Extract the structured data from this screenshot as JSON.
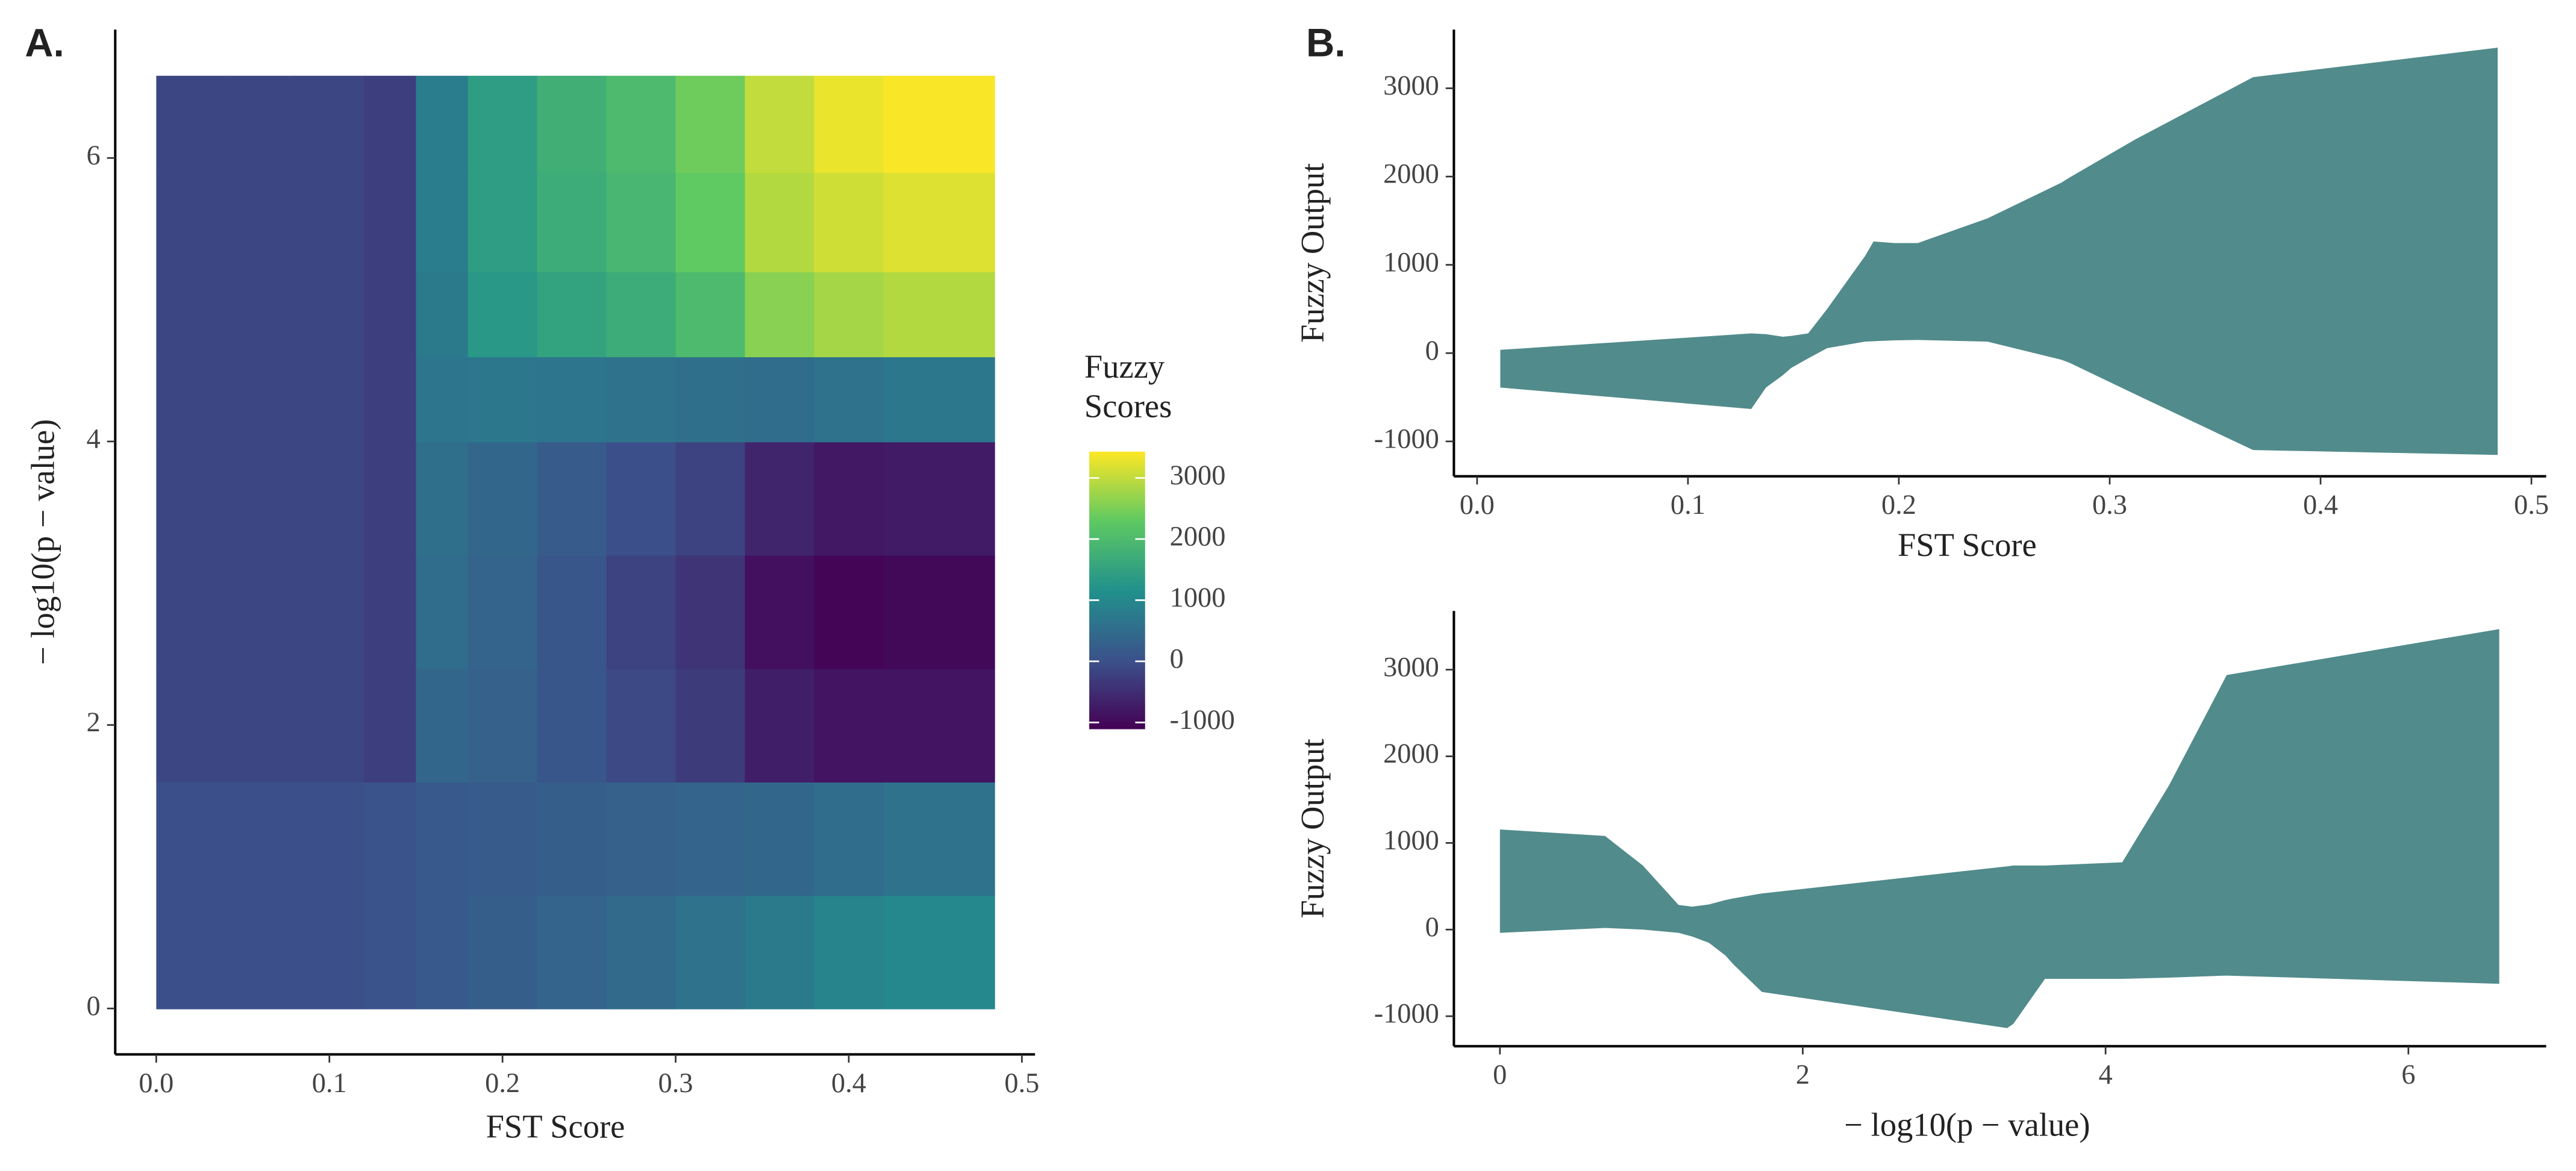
{
  "chart_data": [
    {
      "type": "heatmap",
      "panel_label": "A.",
      "xlabel": "FST Score",
      "ylabel": "− log10(p − value)",
      "xbins": [
        0,
        0.04,
        0.08,
        0.12,
        0.15,
        0.18,
        0.22,
        0.26,
        0.3,
        0.34,
        0.38,
        0.42,
        0.484
      ],
      "ybins": [
        0,
        0.8,
        1.6,
        2.4,
        3.2,
        4.0,
        4.6,
        5.2,
        5.9,
        6.58
      ],
      "values": [
        [
          0,
          0,
          0,
          50,
          150,
          250,
          350,
          450,
          600,
          750,
          900,
          1000
        ],
        [
          0,
          0,
          0,
          50,
          150,
          200,
          250,
          300,
          350,
          400,
          500,
          600
        ],
        [
          -150,
          -150,
          -150,
          -250,
          400,
          300,
          100,
          -100,
          -300,
          -700,
          -850,
          -850
        ],
        [
          -150,
          -150,
          -150,
          -250,
          500,
          350,
          100,
          -200,
          -400,
          -900,
          -1050,
          -1000
        ],
        [
          -150,
          -150,
          -150,
          -250,
          550,
          400,
          200,
          0,
          -200,
          -600,
          -800,
          -750
        ],
        [
          -150,
          -150,
          -150,
          -250,
          650,
          700,
          650,
          600,
          550,
          500,
          600,
          700
        ],
        [
          -150,
          -150,
          -150,
          -250,
          750,
          1300,
          1500,
          1700,
          2000,
          2600,
          2800,
          2900
        ],
        [
          -150,
          -150,
          -150,
          -250,
          800,
          1400,
          1700,
          1900,
          2300,
          2900,
          3100,
          3200
        ],
        [
          -150,
          -150,
          -150,
          -250,
          800,
          1400,
          1750,
          2000,
          2400,
          3000,
          3300,
          3400
        ]
      ],
      "xlim": [
        -0.0237,
        0.5076
      ],
      "xticks": [
        {
          "value": 0,
          "label": "0.0"
        },
        0.1,
        0.2,
        0.3,
        0.4,
        0.5
      ],
      "ylim": [
        -0.324,
        6.906
      ],
      "yticks": [
        0,
        2,
        4,
        6
      ],
      "legend_title": "Fuzzy Scores",
      "colormap": [
        "#440154",
        "#3b528b",
        "#21918c",
        "#5ec962",
        "#fde725"
      ],
      "clim": [
        -1110,
        3430
      ],
      "cticks": [
        -1000,
        0,
        1000,
        2000,
        3000
      ]
    },
    {
      "type": "ribbon",
      "panel_label": "B.",
      "xlabel": "FST Score",
      "ylabel": "Fuzzy Output",
      "color": "#528b8b",
      "x": [
        0.011,
        0.13,
        0.137,
        0.145,
        0.149,
        0.157,
        0.166,
        0.184,
        0.188,
        0.198,
        0.209,
        0.242,
        0.277,
        0.281,
        0.312,
        0.368,
        0.484
      ],
      "ymax": [
        37,
        223,
        215,
        186,
        195,
        223,
        500,
        1100,
        1265,
        1247,
        1247,
        1526,
        1930,
        1990,
        2419,
        3126,
        3460
      ],
      "ymin": [
        -390,
        -633,
        -390,
        -250,
        -167,
        -60,
        56,
        130,
        135,
        145,
        149,
        130,
        -74,
        -110,
        -465,
        -1098,
        -1153
      ],
      "xlim": [
        -0.011,
        0.507
      ],
      "xticks": [
        {
          "value": 0,
          "label": "0.0"
        },
        0.1,
        0.2,
        0.3,
        0.4,
        0.5
      ],
      "ylim": [
        -1395,
        3665
      ],
      "yticks": [
        -1000,
        0,
        1000,
        2000,
        3000
      ]
    },
    {
      "type": "ribbon",
      "xlabel": "− log10(p − value)",
      "ylabel": "Fuzzy Output",
      "color": "#528b8b",
      "x": [
        0,
        0.694,
        0.944,
        1.18,
        1.27,
        1.38,
        1.49,
        1.54,
        1.73,
        3.35,
        3.39,
        3.6,
        4.11,
        4.42,
        4.8,
        6.6
      ],
      "ymax": [
        1156,
        1081,
        739,
        284,
        265,
        290,
        341,
        360,
        417,
        730,
        739,
        739,
        777,
        1668,
        2938,
        3469
      ],
      "ymin": [
        -38,
        19,
        0,
        -38,
        -80,
        -152,
        -300,
        -398,
        -720,
        -1137,
        -1090,
        -569,
        -569,
        -555,
        -531,
        -626
      ],
      "xlim": [
        -0.304,
        6.91
      ],
      "xticks": [
        0,
        2,
        4,
        6
      ],
      "ylim": [
        -1346,
        3678
      ],
      "yticks": [
        -1000,
        0,
        1000,
        2000,
        3000
      ]
    }
  ]
}
